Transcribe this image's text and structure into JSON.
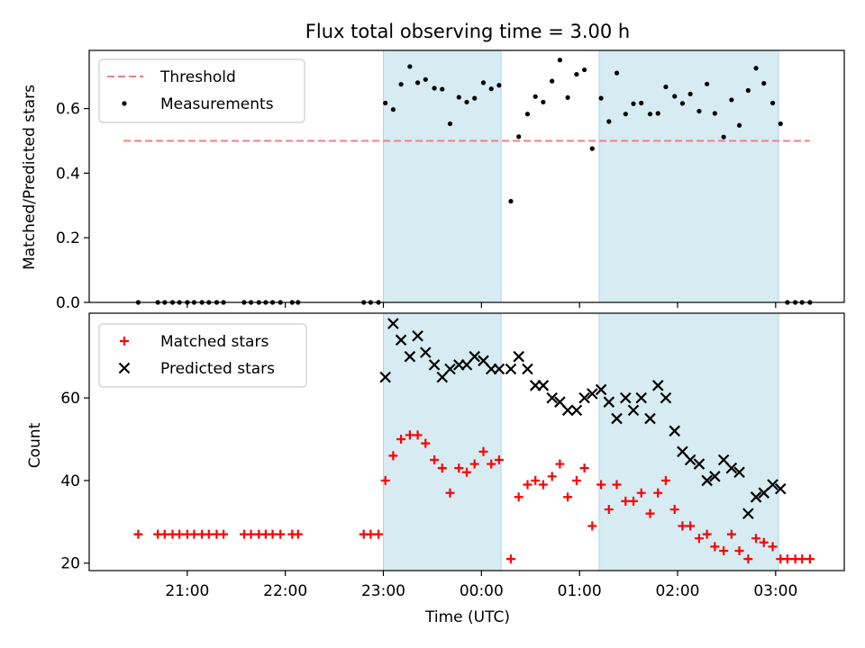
{
  "chart_data": [
    {
      "type": "scatter",
      "title": "Flux total observing time = 3.00 h",
      "xlabel": "",
      "ylabel": "Matched/Predicted stars",
      "x_unit": "hours since 20:00 UTC",
      "xlim": [
        20.0,
        27.7
      ],
      "ylim": [
        0.0,
        0.78
      ],
      "yticks": [
        0.0,
        0.2,
        0.4,
        0.6
      ],
      "ytick_labels": [
        "0.0",
        "0.2",
        "0.4",
        "0.6"
      ],
      "shaded_intervals": [
        [
          23.0,
          24.2
        ],
        [
          25.2,
          27.03
        ]
      ],
      "threshold": {
        "name": "Threshold",
        "value": 0.5,
        "x_range": [
          20.35,
          27.35
        ],
        "color": "#f08080"
      },
      "legend": {
        "placement": "top-left",
        "entries": [
          "Threshold",
          "Measurements"
        ]
      },
      "series": [
        {
          "name": "Measurements",
          "color": "#000000",
          "marker": "dot",
          "points": [
            [
              20.5,
              0
            ],
            [
              20.7,
              0
            ],
            [
              20.77,
              0
            ],
            [
              20.85,
              0
            ],
            [
              20.92,
              0
            ],
            [
              21.0,
              0
            ],
            [
              21.07,
              0
            ],
            [
              21.15,
              0
            ],
            [
              21.22,
              0
            ],
            [
              21.3,
              0
            ],
            [
              21.37,
              0
            ],
            [
              21.58,
              0
            ],
            [
              21.65,
              0
            ],
            [
              21.73,
              0
            ],
            [
              21.8,
              0
            ],
            [
              21.87,
              0
            ],
            [
              21.95,
              0
            ],
            [
              22.07,
              0
            ],
            [
              22.13,
              0
            ],
            [
              22.8,
              0
            ],
            [
              22.87,
              0
            ],
            [
              22.95,
              0
            ],
            [
              23.02,
              0.617
            ],
            [
              23.1,
              0.597
            ],
            [
              23.18,
              0.675
            ],
            [
              23.27,
              0.73
            ],
            [
              23.35,
              0.68
            ],
            [
              23.43,
              0.69
            ],
            [
              23.52,
              0.663
            ],
            [
              23.6,
              0.66
            ],
            [
              23.68,
              0.553
            ],
            [
              23.77,
              0.635
            ],
            [
              23.85,
              0.62
            ],
            [
              23.93,
              0.632
            ],
            [
              24.02,
              0.68
            ],
            [
              24.1,
              0.661
            ],
            [
              24.18,
              0.672
            ],
            [
              24.3,
              0.313
            ],
            [
              24.38,
              0.513
            ],
            [
              24.47,
              0.583
            ],
            [
              24.55,
              0.637
            ],
            [
              24.63,
              0.62
            ],
            [
              24.72,
              0.685
            ],
            [
              24.8,
              0.75
            ],
            [
              24.88,
              0.634
            ],
            [
              24.97,
              0.706
            ],
            [
              25.05,
              0.72
            ],
            [
              25.13,
              0.476
            ],
            [
              25.22,
              0.632
            ],
            [
              25.3,
              0.56
            ],
            [
              25.38,
              0.71
            ],
            [
              25.47,
              0.583
            ],
            [
              25.55,
              0.615
            ],
            [
              25.63,
              0.617
            ],
            [
              25.72,
              0.583
            ],
            [
              25.8,
              0.585
            ],
            [
              25.88,
              0.667
            ],
            [
              25.97,
              0.638
            ],
            [
              26.05,
              0.616
            ],
            [
              26.13,
              0.645
            ],
            [
              26.22,
              0.592
            ],
            [
              26.3,
              0.676
            ],
            [
              26.38,
              0.585
            ],
            [
              26.47,
              0.512
            ],
            [
              26.55,
              0.627
            ],
            [
              26.63,
              0.548
            ],
            [
              26.72,
              0.656
            ],
            [
              26.8,
              0.725
            ],
            [
              26.88,
              0.678
            ],
            [
              26.97,
              0.617
            ],
            [
              27.05,
              0.553
            ],
            [
              27.12,
              0
            ],
            [
              27.2,
              0
            ],
            [
              27.27,
              0
            ],
            [
              27.35,
              0
            ]
          ]
        }
      ]
    },
    {
      "type": "scatter",
      "title": "",
      "xlabel": "Time (UTC)",
      "ylabel": "Count",
      "x_unit": "hours since 20:00 UTC",
      "xlim": [
        20.0,
        27.7
      ],
      "ylim": [
        18.2,
        80.5
      ],
      "xticks": [
        21,
        22,
        23,
        24,
        25,
        26,
        27
      ],
      "xtick_labels": [
        "21:00",
        "22:00",
        "23:00",
        "00:00",
        "01:00",
        "02:00",
        "03:00"
      ],
      "yticks": [
        20,
        40,
        60
      ],
      "ytick_labels": [
        "20",
        "40",
        "60"
      ],
      "shaded_intervals": [
        [
          23.0,
          24.2
        ],
        [
          25.2,
          27.03
        ]
      ],
      "legend": {
        "placement": "top-left",
        "entries": [
          "Matched stars",
          "Predicted stars"
        ]
      },
      "series": [
        {
          "name": "Matched stars",
          "color": "#ff0000",
          "marker": "plus",
          "points": [
            [
              20.5,
              27
            ],
            [
              20.7,
              27
            ],
            [
              20.77,
              27
            ],
            [
              20.85,
              27
            ],
            [
              20.92,
              27
            ],
            [
              21.0,
              27
            ],
            [
              21.07,
              27
            ],
            [
              21.15,
              27
            ],
            [
              21.22,
              27
            ],
            [
              21.3,
              27
            ],
            [
              21.37,
              27
            ],
            [
              21.58,
              27
            ],
            [
              21.65,
              27
            ],
            [
              21.73,
              27
            ],
            [
              21.8,
              27
            ],
            [
              21.87,
              27
            ],
            [
              21.95,
              27
            ],
            [
              22.07,
              27
            ],
            [
              22.13,
              27
            ],
            [
              22.8,
              27
            ],
            [
              22.87,
              27
            ],
            [
              22.95,
              27
            ],
            [
              23.02,
              40
            ],
            [
              23.1,
              46
            ],
            [
              23.18,
              50
            ],
            [
              23.27,
              51
            ],
            [
              23.35,
              51
            ],
            [
              23.43,
              49
            ],
            [
              23.52,
              45
            ],
            [
              23.6,
              43
            ],
            [
              23.68,
              37
            ],
            [
              23.77,
              43
            ],
            [
              23.85,
              42
            ],
            [
              23.93,
              44
            ],
            [
              24.02,
              47
            ],
            [
              24.1,
              44
            ],
            [
              24.18,
              45
            ],
            [
              24.3,
              21
            ],
            [
              24.38,
              36
            ],
            [
              24.47,
              39
            ],
            [
              24.55,
              40
            ],
            [
              24.63,
              39
            ],
            [
              24.72,
              41
            ],
            [
              24.8,
              44
            ],
            [
              24.88,
              36
            ],
            [
              24.97,
              40
            ],
            [
              25.05,
              43
            ],
            [
              25.13,
              29
            ],
            [
              25.22,
              39
            ],
            [
              25.3,
              33
            ],
            [
              25.38,
              39
            ],
            [
              25.47,
              35
            ],
            [
              25.55,
              35
            ],
            [
              25.63,
              37
            ],
            [
              25.72,
              32
            ],
            [
              25.8,
              37
            ],
            [
              25.88,
              40
            ],
            [
              25.97,
              33
            ],
            [
              26.05,
              29
            ],
            [
              26.13,
              29
            ],
            [
              26.22,
              26
            ],
            [
              26.3,
              27
            ],
            [
              26.38,
              24
            ],
            [
              26.47,
              23
            ],
            [
              26.55,
              27
            ],
            [
              26.63,
              23
            ],
            [
              26.72,
              21
            ],
            [
              26.8,
              26
            ],
            [
              26.88,
              25
            ],
            [
              26.97,
              24
            ],
            [
              27.05,
              21
            ],
            [
              27.12,
              21
            ],
            [
              27.2,
              21
            ],
            [
              27.27,
              21
            ],
            [
              27.35,
              21
            ]
          ]
        },
        {
          "name": "Predicted stars",
          "color": "#000000",
          "marker": "x",
          "points": [
            [
              23.02,
              65
            ],
            [
              23.1,
              78
            ],
            [
              23.18,
              74
            ],
            [
              23.27,
              70
            ],
            [
              23.35,
              75
            ],
            [
              23.43,
              71
            ],
            [
              23.52,
              68
            ],
            [
              23.6,
              65
            ],
            [
              23.68,
              67
            ],
            [
              23.77,
              68
            ],
            [
              23.85,
              68
            ],
            [
              23.93,
              70
            ],
            [
              24.02,
              69
            ],
            [
              24.1,
              67
            ],
            [
              24.18,
              67
            ],
            [
              24.3,
              67
            ],
            [
              24.38,
              70
            ],
            [
              24.47,
              67
            ],
            [
              24.55,
              63
            ],
            [
              24.63,
              63
            ],
            [
              24.72,
              60
            ],
            [
              24.8,
              59
            ],
            [
              24.88,
              57
            ],
            [
              24.97,
              57
            ],
            [
              25.05,
              60
            ],
            [
              25.13,
              61
            ],
            [
              25.22,
              62
            ],
            [
              25.3,
              59
            ],
            [
              25.38,
              55
            ],
            [
              25.47,
              60
            ],
            [
              25.55,
              57
            ],
            [
              25.63,
              60
            ],
            [
              25.72,
              55
            ],
            [
              25.8,
              63
            ],
            [
              25.88,
              60
            ],
            [
              25.97,
              52
            ],
            [
              26.05,
              47
            ],
            [
              26.13,
              45
            ],
            [
              26.22,
              44
            ],
            [
              26.3,
              40
            ],
            [
              26.38,
              41
            ],
            [
              26.47,
              45
            ],
            [
              26.55,
              43
            ],
            [
              26.63,
              42
            ],
            [
              26.72,
              32
            ],
            [
              26.8,
              36
            ],
            [
              26.88,
              37
            ],
            [
              26.97,
              39
            ],
            [
              27.05,
              38
            ]
          ]
        }
      ]
    }
  ]
}
